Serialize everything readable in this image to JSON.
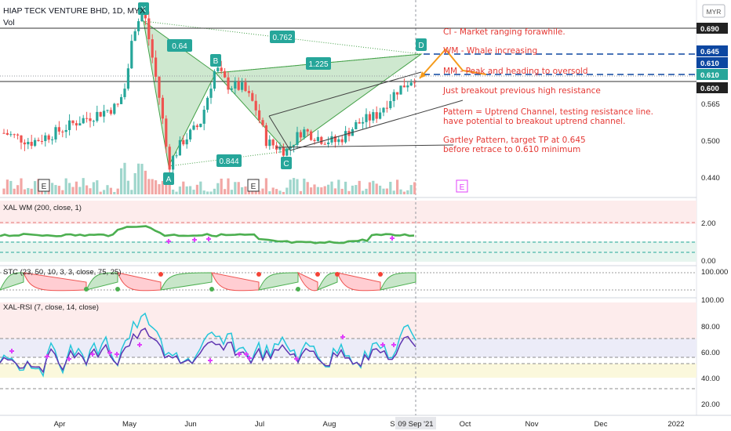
{
  "header": {
    "symbol_line": "HIAP TECK VENTURE BHD, 1D, MYX",
    "vol_label": "Vol",
    "currency_badge": "MYR"
  },
  "chart_data": {
    "type": "candlestick",
    "price_axis": {
      "ticks": [
        "0.565",
        "0.500",
        "0.440"
      ],
      "badges": [
        {
          "text": "0.690",
          "value": 0.69,
          "color": "#222222"
        },
        {
          "text": "0.645",
          "value": 0.645,
          "color": "#0d47a1"
        },
        {
          "text": "0.610",
          "value": 0.61,
          "color": "#0d47a1"
        },
        {
          "text": "0.610",
          "value": 0.61,
          "color": "#26a69a"
        },
        {
          "text": "0.600",
          "value": 0.6,
          "color": "#222222"
        }
      ]
    },
    "time_axis": {
      "labels": [
        "Apr",
        "May",
        "Jun",
        "Jul",
        "Aug",
        "Se",
        "Oct",
        "Nov",
        "Dec",
        "2022"
      ],
      "cursor_label": "09 Sep '21"
    },
    "pattern_points": [
      {
        "label": "X",
        "value": 0.72
      },
      {
        "label": "A",
        "value": 0.46
      },
      {
        "label": "B",
        "value": 0.625
      },
      {
        "label": "C",
        "value": 0.485
      },
      {
        "label": "D",
        "value": 0.652
      }
    ],
    "pattern_ratios": [
      "0.64",
      "0.762",
      "1.225",
      "0.844"
    ],
    "event_markers": [
      "E",
      "E",
      "E"
    ],
    "annotations": [
      "CI - Market ranging forawhile.",
      "WM - Whale increasing",
      "MM - Peak and heading to oversold",
      "Just breakout previous high resistance",
      "Pattern = Uptrend Channel, testing resistance line.",
      "have potential to breakout uptrend channel.",
      "Gartley Pattern, target TP at 0.645",
      "before retrace to 0.610 minimum"
    ],
    "indicators": {
      "wm": {
        "label": "XAL WM (200, close, 1)",
        "ticks": [
          "2.00",
          "0.00"
        ]
      },
      "stc": {
        "label": "STC (23, 50, 10, 3, 3, close, 75, 25)",
        "ticks": [
          "100.000"
        ]
      },
      "rsi": {
        "label": "XAL-RSI (7, close, 14, close)",
        "ticks": [
          "100.00",
          "80.00",
          "60.00",
          "40.00",
          "20.00"
        ]
      }
    }
  }
}
